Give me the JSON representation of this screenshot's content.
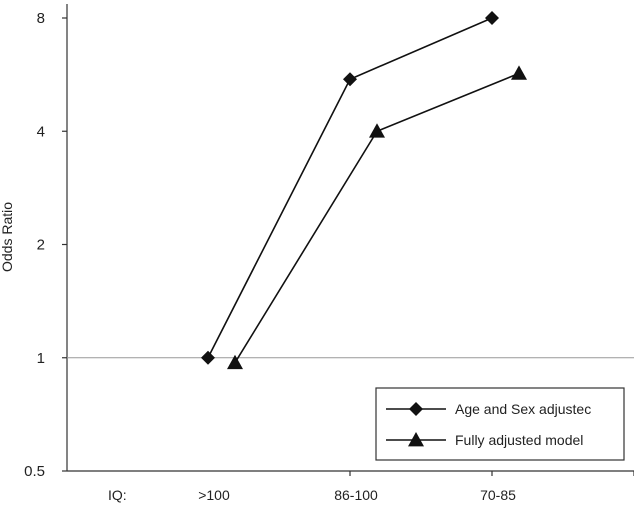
{
  "chart_data": {
    "type": "line",
    "title": "",
    "xlabel": "",
    "ylabel": "Odds Ratio",
    "x_prefix_label": "IQ:",
    "categories": [
      ">100",
      "86-100",
      "70-85"
    ],
    "y_scale": "log2",
    "ylim": [
      0.5,
      8
    ],
    "yticks": [
      0.5,
      1,
      2,
      4,
      8
    ],
    "ytick_labels": [
      "0.5",
      "1",
      "2",
      "4",
      "8"
    ],
    "reference_line": 1,
    "legend_position": "bottom-right",
    "series": [
      {
        "name": "Age and Sex adjustec",
        "marker": "diamond",
        "values": [
          1.0,
          5.5,
          8.0
        ]
      },
      {
        "name": "Fully adjusted model",
        "marker": "triangle",
        "values": [
          0.97,
          4.0,
          5.7
        ]
      }
    ]
  }
}
